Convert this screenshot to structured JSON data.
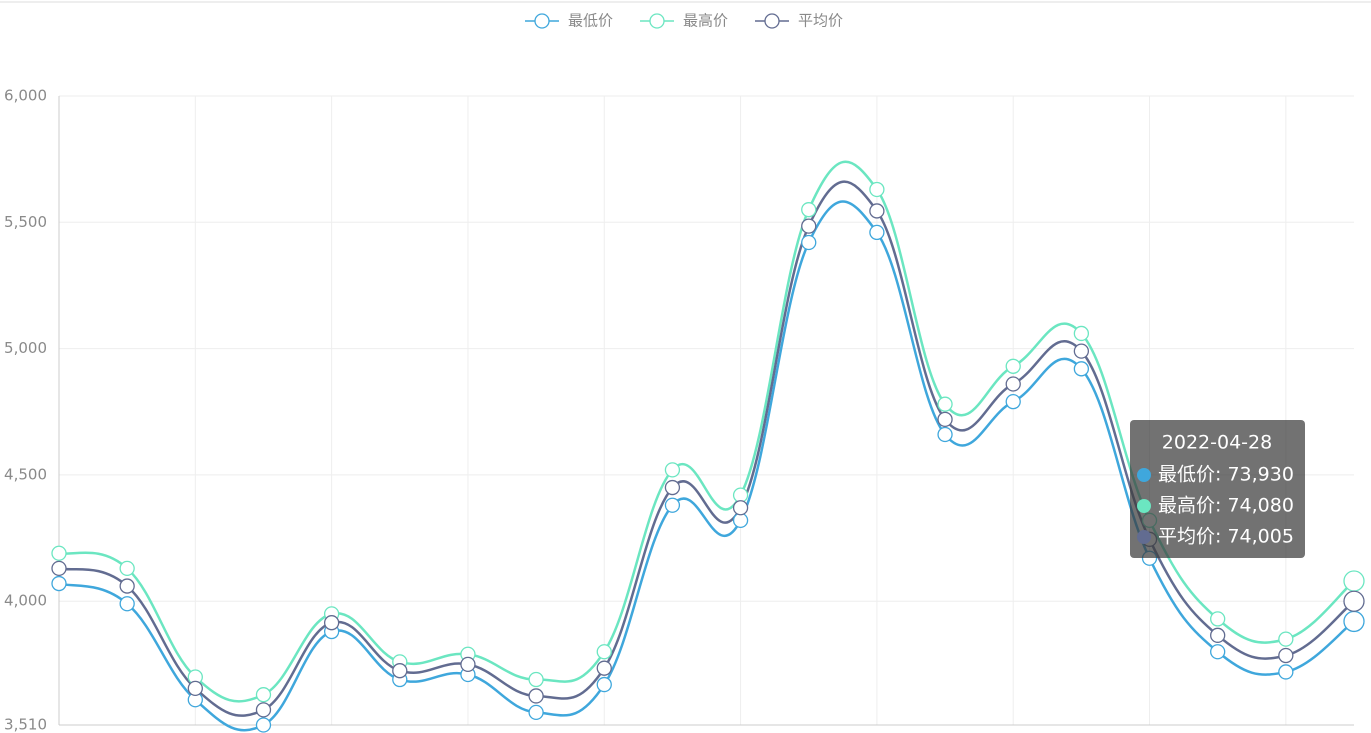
{
  "chart_data": {
    "type": "line",
    "categories": [
      null,
      null,
      null,
      null,
      null,
      null,
      null,
      null,
      null,
      null,
      null,
      null,
      null,
      null,
      null,
      null,
      null,
      null,
      null,
      null
    ],
    "series": [
      {
        "name": "最低价",
        "color": "#3fa7dc",
        "values": [
          4070,
          3990,
          3610,
          3510,
          3880,
          3690,
          3710,
          3560,
          3670,
          4380,
          4320,
          5420,
          5460,
          4660,
          4790,
          4920,
          4170,
          3800,
          3720,
          3920
        ]
      },
      {
        "name": "最高价",
        "color": "#6be6c1",
        "values": [
          4190,
          4130,
          3700,
          3630,
          3950,
          3760,
          3790,
          3690,
          3800,
          4520,
          4420,
          5550,
          5630,
          4780,
          4930,
          5060,
          4320,
          3930,
          3850,
          4080
        ]
      },
      {
        "name": "平均价",
        "color": "#626c91",
        "values": [
          4130,
          4060,
          3655,
          3570,
          3915,
          3725,
          3750,
          3625,
          3735,
          4450,
          4370,
          5485,
          5545,
          4720,
          4860,
          4990,
          4245,
          3865,
          3785,
          4000
        ]
      }
    ],
    "ylim": [
      3510,
      6000
    ],
    "yticks": [
      {
        "value": 3510,
        "label": "3,510"
      },
      {
        "value": 4000,
        "label": "4,000"
      },
      {
        "value": 4500,
        "label": "4,500"
      },
      {
        "value": 5000,
        "label": "5,000"
      },
      {
        "value": 5500,
        "label": "5,500"
      },
      {
        "value": 6000,
        "label": "6,000"
      }
    ],
    "grid": true,
    "legend": "top",
    "tooltip": {
      "title": "2022-04-28",
      "lines": [
        "最低价: 73,930",
        "最高价: 74,080",
        "平均价: 74,005"
      ]
    }
  }
}
